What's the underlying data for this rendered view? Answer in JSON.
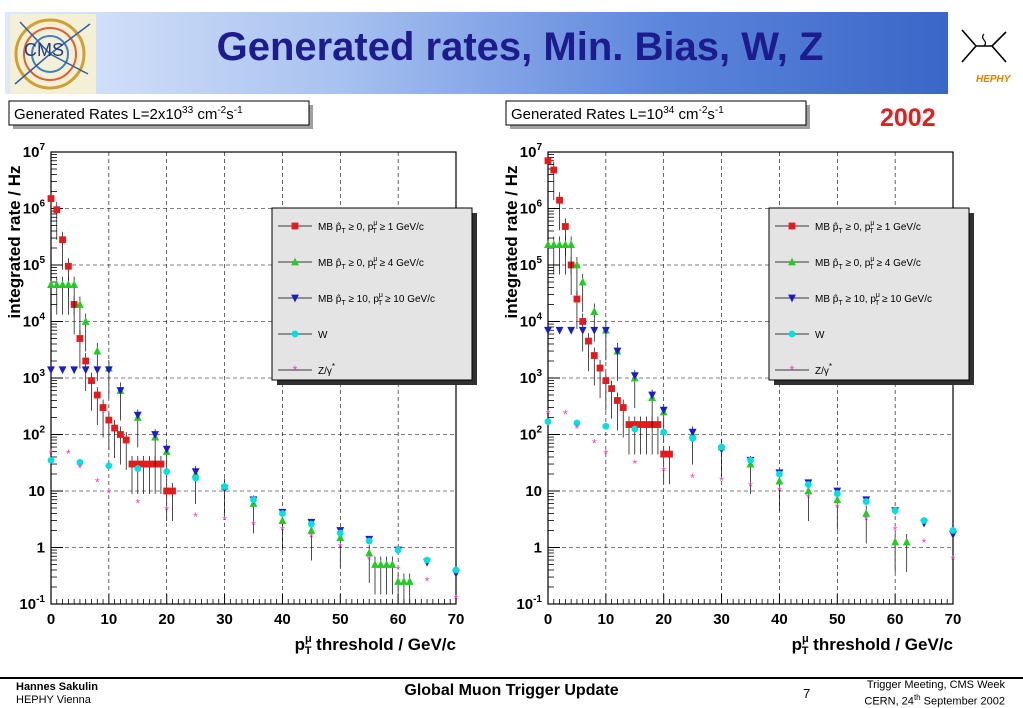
{
  "header": {
    "title": "Generated rates, Min. Bias, W, Z",
    "logo_text": "CMS",
    "hephy_label": "HEPHY",
    "year": "2002"
  },
  "footer": {
    "author": "Hannes Sakulin",
    "institute": "HEPHY Vienna",
    "talk_title": "Global Muon Trigger Update",
    "page_number": "7",
    "meeting": "Trigger Meeting, CMS Week",
    "date_prefix": "CERN, 24",
    "date_sup": "th",
    "date_suffix": " September 2002"
  },
  "chart_data": [
    {
      "type": "scatter",
      "title_main": "Generated Rates L=2x10",
      "title_exp": "33",
      "title_unit": " cm",
      "title_unit_exp": "-2",
      "title_s": "s",
      "title_s_exp": "-1",
      "ylabel": "integrated rate / Hz",
      "xlabel_prefix": "p",
      "xlabel_sup": "μ",
      "xlabel_sub": "T",
      "xlabel_suffix": " threshold / GeV/c",
      "xlim": [
        0,
        70
      ],
      "ylim_log10": [
        -1,
        7
      ],
      "xticks": [
        "0",
        "10",
        "20",
        "30",
        "40",
        "50",
        "60",
        "70"
      ],
      "yticks_base": "10",
      "yticks": [
        {
          "base": "10",
          "exp": "-1"
        },
        {
          "base": "1",
          "exp": ""
        },
        {
          "base": "10",
          "exp": ""
        },
        {
          "base": "10",
          "exp": "2"
        },
        {
          "base": "10",
          "exp": "3"
        },
        {
          "base": "10",
          "exp": "4"
        },
        {
          "base": "10",
          "exp": "5"
        },
        {
          "base": "10",
          "exp": "6"
        },
        {
          "base": "10",
          "exp": "7"
        }
      ],
      "grid": true,
      "legend_position": "top-right",
      "series": [
        {
          "name": "MB p̂T ≥ 0, pTμ ≥ 1 GeV/c",
          "label_parts": [
            "MB ",
            "p̂",
            "T",
            " ≥  0, p",
            "μ",
            "T",
            " ≥  1 GeV/c"
          ],
          "color": "#e41a1c",
          "marker": "square",
          "x": [
            0,
            1,
            2,
            3,
            4,
            5,
            6,
            7,
            8,
            9,
            10,
            11,
            12,
            13,
            14,
            15,
            16,
            17,
            18,
            19,
            20,
            21
          ],
          "y": [
            1500000,
            950000,
            280000,
            95000,
            20000,
            5000,
            2000,
            900,
            500,
            300,
            180,
            130,
            100,
            80,
            30,
            30,
            30,
            30,
            30,
            30,
            10,
            10
          ]
        },
        {
          "name": "MB p̂T ≥ 0, pTμ ≥ 4 GeV/c",
          "label_parts": [
            "MB ",
            "p̂",
            "T",
            " ≥  0, p",
            "μ",
            "T",
            " ≥  4 GeV/c"
          ],
          "color": "#22cc22",
          "marker": "triangle-up",
          "x": [
            0,
            1,
            2,
            3,
            4,
            5,
            6,
            8,
            10,
            12,
            15,
            18,
            20,
            25,
            30,
            35,
            40,
            45,
            50,
            55,
            56,
            57,
            58,
            59,
            60,
            61,
            62
          ],
          "y": [
            45000,
            45000,
            45000,
            45000,
            45000,
            20000,
            10000,
            3000,
            1500,
            600,
            200,
            90,
            50,
            20,
            12,
            6,
            3,
            2,
            1.5,
            0.8,
            0.5,
            0.5,
            0.5,
            0.5,
            0.25,
            0.25,
            0.25
          ]
        },
        {
          "name": "MB p̂T ≥ 10, pTμ ≥ 10 GeV/c",
          "label_parts": [
            "MB ",
            "p̂",
            "T",
            " ≥ 10, p",
            "μ",
            "T",
            " ≥ 10 GeV/c"
          ],
          "color": "#1a1ad0",
          "marker": "triangle-down",
          "x": [
            0,
            2,
            4,
            6,
            8,
            10,
            12,
            15,
            18,
            20,
            25,
            30,
            35,
            40,
            45,
            50,
            55,
            60,
            65,
            70
          ],
          "y": [
            1400,
            1400,
            1400,
            1400,
            1400,
            1400,
            600,
            220,
            100,
            55,
            22,
            11,
            7,
            4.2,
            2.8,
            2,
            1.4,
            0.9,
            0.55,
            0.35
          ]
        },
        {
          "name": "W",
          "label_parts": [
            "W"
          ],
          "color": "#00e0e0",
          "marker": "circle",
          "x": [
            0,
            5,
            10,
            15,
            20,
            25,
            30,
            35,
            40,
            45,
            50,
            55,
            60,
            65,
            70
          ],
          "y": [
            35,
            32,
            28,
            25,
            22,
            17,
            12,
            7,
            4,
            2.6,
            1.8,
            1.3,
            0.9,
            0.6,
            0.4
          ]
        },
        {
          "name": "Z/γ*",
          "label_parts": [
            "Z/γ",
            "*"
          ],
          "color": "#ff33cc",
          "marker": "star",
          "x": [
            0,
            3,
            5,
            8,
            10,
            15,
            20,
            25,
            30,
            35,
            40,
            45,
            50,
            55,
            60,
            65,
            70
          ],
          "y": [
            45,
            45,
            25,
            14,
            9,
            6,
            4.5,
            3.5,
            3,
            2.5,
            2,
            1.5,
            1,
            0.6,
            0.4,
            0.25,
            0.12
          ]
        }
      ]
    },
    {
      "type": "scatter",
      "title_main": "Generated Rates L=10",
      "title_exp": "34",
      "title_unit": " cm",
      "title_unit_exp": "-2",
      "title_s": "s",
      "title_s_exp": "-1",
      "ylabel": "integrated rate / Hz",
      "xlabel_prefix": "p",
      "xlabel_sup": "μ",
      "xlabel_sub": "T",
      "xlabel_suffix": " threshold / GeV/c",
      "xlim": [
        0,
        70
      ],
      "ylim_log10": [
        -1,
        7
      ],
      "xticks": [
        "0",
        "10",
        "20",
        "30",
        "40",
        "50",
        "60",
        "70"
      ],
      "yticks": [
        {
          "base": "10",
          "exp": "-1"
        },
        {
          "base": "1",
          "exp": ""
        },
        {
          "base": "10",
          "exp": ""
        },
        {
          "base": "10",
          "exp": "2"
        },
        {
          "base": "10",
          "exp": "3"
        },
        {
          "base": "10",
          "exp": "4"
        },
        {
          "base": "10",
          "exp": "5"
        },
        {
          "base": "10",
          "exp": "6"
        },
        {
          "base": "10",
          "exp": "7"
        }
      ],
      "grid": true,
      "legend_position": "top-right",
      "series": [
        {
          "name": "MB p̂T ≥ 0, pTμ ≥ 1 GeV/c",
          "label_parts": [
            "MB ",
            "p̂",
            "T",
            " ≥  0, p",
            "μ",
            "T",
            " ≥  1 GeV/c"
          ],
          "color": "#e41a1c",
          "marker": "square",
          "x": [
            0,
            1,
            2,
            3,
            4,
            5,
            6,
            7,
            8,
            9,
            10,
            11,
            12,
            13,
            14,
            15,
            16,
            17,
            18,
            19,
            20,
            21
          ],
          "y": [
            7000000,
            4800000,
            1400000,
            480000,
            100000,
            25000,
            10000,
            4500,
            2500,
            1500,
            900,
            650,
            400,
            300,
            150,
            150,
            150,
            150,
            150,
            150,
            45,
            45
          ]
        },
        {
          "name": "MB p̂T ≥ 0, pTμ ≥ 4 GeV/c",
          "label_parts": [
            "MB ",
            "p̂",
            "T",
            " ≥  0, p",
            "μ",
            "T",
            " ≥  4 GeV/c"
          ],
          "color": "#22cc22",
          "marker": "triangle-up",
          "x": [
            0,
            1,
            2,
            3,
            4,
            5,
            6,
            8,
            10,
            12,
            15,
            18,
            20,
            25,
            30,
            35,
            40,
            45,
            50,
            55,
            60,
            62
          ],
          "y": [
            230000,
            230000,
            230000,
            230000,
            230000,
            100000,
            50000,
            15000,
            7000,
            3000,
            1000,
            450,
            250,
            100,
            60,
            30,
            15,
            10,
            7,
            4,
            1.25,
            1.25
          ]
        },
        {
          "name": "MB p̂T ≥ 10, pTμ ≥ 10 GeV/c",
          "label_parts": [
            "MB ",
            "p̂",
            "T",
            " ≥ 10, p",
            "μ",
            "T",
            " ≥ 10 GeV/c"
          ],
          "color": "#1a1ad0",
          "marker": "triangle-down",
          "x": [
            0,
            2,
            4,
            6,
            8,
            10,
            12,
            15,
            18,
            20,
            25,
            30,
            35,
            40,
            45,
            50,
            55,
            60,
            65,
            70
          ],
          "y": [
            7000,
            7000,
            7000,
            7000,
            7000,
            7000,
            3000,
            1100,
            500,
            270,
            110,
            55,
            35,
            21,
            14,
            10,
            7,
            4.5,
            2.7,
            1.7
          ]
        },
        {
          "name": "W",
          "label_parts": [
            "W"
          ],
          "color": "#00e0e0",
          "marker": "circle",
          "x": [
            0,
            5,
            10,
            15,
            20,
            25,
            30,
            35,
            40,
            45,
            50,
            55,
            60,
            65,
            70
          ],
          "y": [
            170,
            160,
            140,
            125,
            110,
            85,
            60,
            35,
            20,
            13,
            9,
            6.5,
            4.5,
            3,
            2
          ]
        },
        {
          "name": "Z/γ*",
          "label_parts": [
            "Z/γ",
            "*"
          ],
          "color": "#ff33cc",
          "marker": "star",
          "x": [
            0,
            3,
            5,
            8,
            10,
            15,
            20,
            25,
            30,
            35,
            40,
            45,
            50,
            55,
            60,
            65,
            70
          ],
          "y": [
            225,
            225,
            125,
            70,
            45,
            30,
            22,
            17,
            15,
            12,
            10,
            7.5,
            5,
            3,
            2,
            1.2,
            0.6
          ]
        }
      ]
    }
  ]
}
